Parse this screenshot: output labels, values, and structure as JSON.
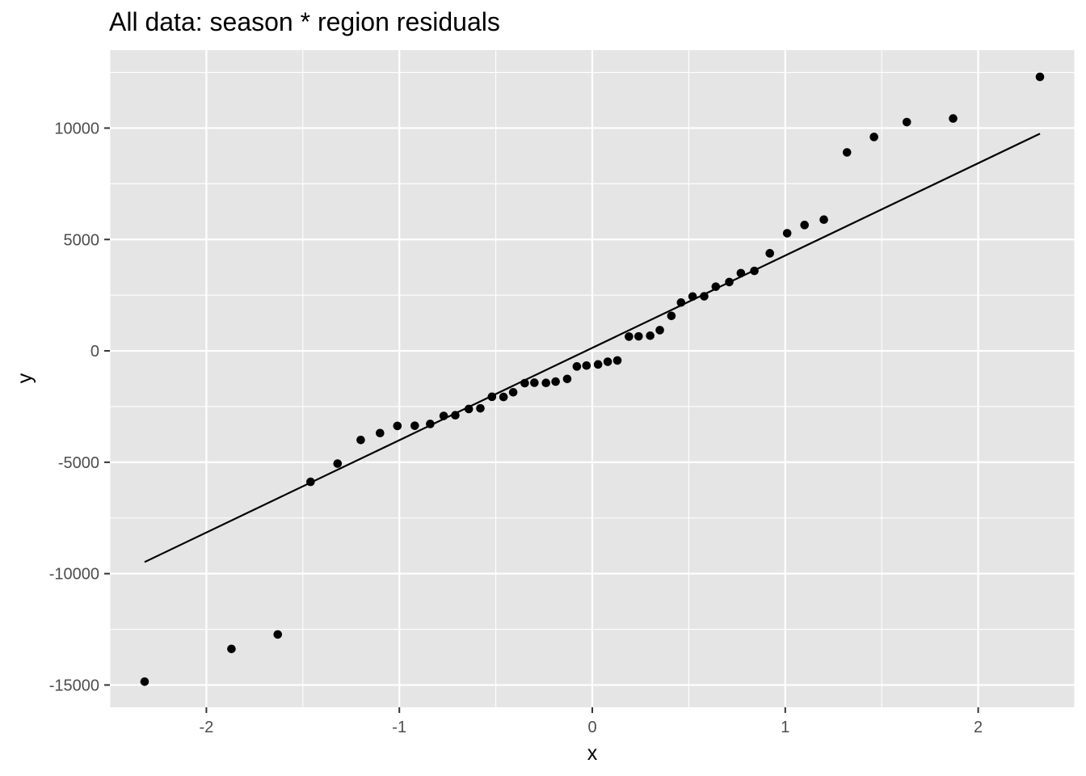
{
  "chart_data": {
    "type": "scatter",
    "title": "All data: season * region residuals",
    "xlabel": "x",
    "ylabel": "y",
    "xlim": [
      -2.5,
      2.5
    ],
    "ylim": [
      -16000,
      13500
    ],
    "grid": true,
    "legend": "none",
    "colors": {
      "panel": "#e5e5e5",
      "grid": "#ffffff",
      "points": "#000000",
      "line": "#000000"
    },
    "x_ticks": [
      {
        "value": -2,
        "label": "-2"
      },
      {
        "value": -1,
        "label": "-1"
      },
      {
        "value": 0,
        "label": "0"
      },
      {
        "value": 1,
        "label": "1"
      },
      {
        "value": 2,
        "label": "2"
      }
    ],
    "y_ticks": [
      {
        "value": -15000,
        "label": "-15000"
      },
      {
        "value": -10000,
        "label": "-10000"
      },
      {
        "value": -5000,
        "label": "-5000"
      },
      {
        "value": 0,
        "label": "0"
      },
      {
        "value": 5000,
        "label": "5000"
      },
      {
        "value": 10000,
        "label": "10000"
      }
    ],
    "points": [
      {
        "x": -2.32,
        "y": -14850
      },
      {
        "x": -1.87,
        "y": -13380
      },
      {
        "x": -1.63,
        "y": -12730
      },
      {
        "x": -1.46,
        "y": -5880
      },
      {
        "x": -1.32,
        "y": -5060
      },
      {
        "x": -1.2,
        "y": -4000
      },
      {
        "x": -1.1,
        "y": -3690
      },
      {
        "x": -1.01,
        "y": -3370
      },
      {
        "x": -0.92,
        "y": -3360
      },
      {
        "x": -0.84,
        "y": -3280
      },
      {
        "x": -0.77,
        "y": -2920
      },
      {
        "x": -0.71,
        "y": -2890
      },
      {
        "x": -0.64,
        "y": -2610
      },
      {
        "x": -0.58,
        "y": -2580
      },
      {
        "x": -0.52,
        "y": -2060
      },
      {
        "x": -0.46,
        "y": -2070
      },
      {
        "x": -0.41,
        "y": -1860
      },
      {
        "x": -0.35,
        "y": -1450
      },
      {
        "x": -0.3,
        "y": -1430
      },
      {
        "x": -0.24,
        "y": -1440
      },
      {
        "x": -0.19,
        "y": -1380
      },
      {
        "x": -0.13,
        "y": -1260
      },
      {
        "x": -0.08,
        "y": -700
      },
      {
        "x": -0.03,
        "y": -660
      },
      {
        "x": 0.03,
        "y": -610
      },
      {
        "x": 0.08,
        "y": -490
      },
      {
        "x": 0.13,
        "y": -430
      },
      {
        "x": 0.19,
        "y": 640
      },
      {
        "x": 0.24,
        "y": 650
      },
      {
        "x": 0.3,
        "y": 680
      },
      {
        "x": 0.35,
        "y": 930
      },
      {
        "x": 0.41,
        "y": 1570
      },
      {
        "x": 0.46,
        "y": 2170
      },
      {
        "x": 0.52,
        "y": 2440
      },
      {
        "x": 0.58,
        "y": 2450
      },
      {
        "x": 0.64,
        "y": 2880
      },
      {
        "x": 0.71,
        "y": 3090
      },
      {
        "x": 0.77,
        "y": 3490
      },
      {
        "x": 0.84,
        "y": 3590
      },
      {
        "x": 0.92,
        "y": 4380
      },
      {
        "x": 1.01,
        "y": 5280
      },
      {
        "x": 1.1,
        "y": 5650
      },
      {
        "x": 1.2,
        "y": 5890
      },
      {
        "x": 1.32,
        "y": 8910
      },
      {
        "x": 1.46,
        "y": 9600
      },
      {
        "x": 1.63,
        "y": 10270
      },
      {
        "x": 1.87,
        "y": 10430
      },
      {
        "x": 2.32,
        "y": 12300
      }
    ],
    "reference_line": {
      "x1": -2.32,
      "y1": -9480,
      "x2": 2.32,
      "y2": 9750
    }
  }
}
